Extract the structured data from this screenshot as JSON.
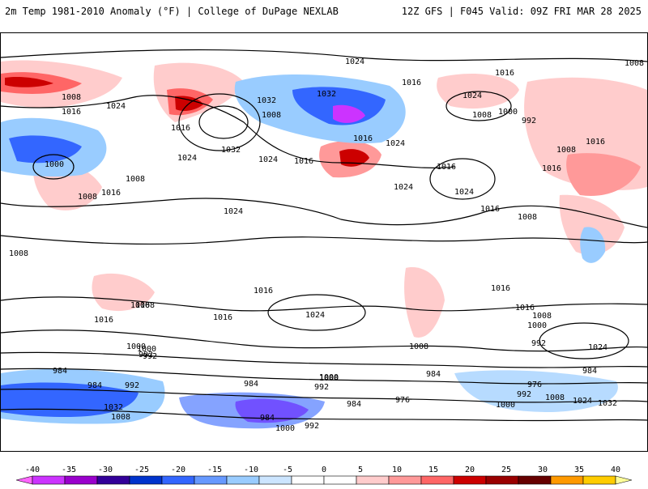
{
  "header": {
    "title": "2m Temp 1981-2010 Anomaly (°F) | College of DuPage NEXLAB",
    "run_info": "12Z GFS | F045 Valid: 09Z FRI MAR 28 2025"
  },
  "colors": {
    "anomaly_scale": [
      "#ff66ff",
      "#cc33ff",
      "#9900cc",
      "#330099",
      "#0033cc",
      "#3366ff",
      "#6699ff",
      "#99ccff",
      "#cce5ff",
      "#ffffff",
      "#ffffff",
      "#ffcccc",
      "#ff9999",
      "#ff6666",
      "#cc0000",
      "#990000",
      "#660000",
      "#ff9900",
      "#ffcc00",
      "#ffff99"
    ]
  },
  "colorbar": {
    "ticks": [
      "-40",
      "-35",
      "-30",
      "-25",
      "-20",
      "-15",
      "-10",
      "-5",
      "0",
      "5",
      "10",
      "15",
      "20",
      "25",
      "30",
      "35",
      "40"
    ]
  },
  "map": {
    "contour_labels": [
      {
        "text": "1024"
      },
      {
        "text": "1008"
      },
      {
        "text": "1016"
      },
      {
        "text": "1016"
      },
      {
        "text": "1024"
      },
      {
        "text": "1016"
      },
      {
        "text": "1008"
      },
      {
        "text": "1024"
      },
      {
        "text": "1032"
      },
      {
        "text": "1032"
      },
      {
        "text": "1008"
      },
      {
        "text": "1016"
      },
      {
        "text": "1024"
      },
      {
        "text": "1000"
      },
      {
        "text": "992"
      },
      {
        "text": "1008"
      },
      {
        "text": "1016"
      },
      {
        "text": "1024"
      },
      {
        "text": "1016"
      },
      {
        "text": "1024"
      },
      {
        "text": "1032"
      },
      {
        "text": "1024"
      },
      {
        "text": "1016"
      },
      {
        "text": "1016"
      },
      {
        "text": "1024"
      },
      {
        "text": "1024"
      },
      {
        "text": "1016"
      },
      {
        "text": "1016"
      },
      {
        "text": "1008"
      },
      {
        "text": "1000"
      },
      {
        "text": "1008"
      },
      {
        "text": "1016"
      },
      {
        "text": "1008"
      },
      {
        "text": "1008"
      },
      {
        "text": "1016"
      },
      {
        "text": "1016"
      },
      {
        "text": "1008"
      },
      {
        "text": "1016"
      },
      {
        "text": "1024"
      },
      {
        "text": "1016"
      },
      {
        "text": "1008"
      },
      {
        "text": "1016"
      },
      {
        "text": "1000"
      },
      {
        "text": "992"
      },
      {
        "text": "1008"
      },
      {
        "text": "1016"
      },
      {
        "text": "1008"
      },
      {
        "text": "1000"
      },
      {
        "text": "992"
      },
      {
        "text": "1024"
      },
      {
        "text": "984"
      },
      {
        "text": "984"
      },
      {
        "text": "1000"
      },
      {
        "text": "984"
      },
      {
        "text": "992"
      },
      {
        "text": "1032"
      },
      {
        "text": "1008"
      },
      {
        "text": "984"
      },
      {
        "text": "1000"
      },
      {
        "text": "992"
      },
      {
        "text": "984"
      },
      {
        "text": "976"
      },
      {
        "text": "984"
      },
      {
        "text": "976"
      },
      {
        "text": "992"
      },
      {
        "text": "1000"
      },
      {
        "text": "1008"
      },
      {
        "text": "1024"
      },
      {
        "text": "1032"
      },
      {
        "text": "984"
      },
      {
        "text": "1000"
      },
      {
        "text": "992"
      },
      {
        "text": "1000"
      },
      {
        "text": "992"
      }
    ]
  }
}
